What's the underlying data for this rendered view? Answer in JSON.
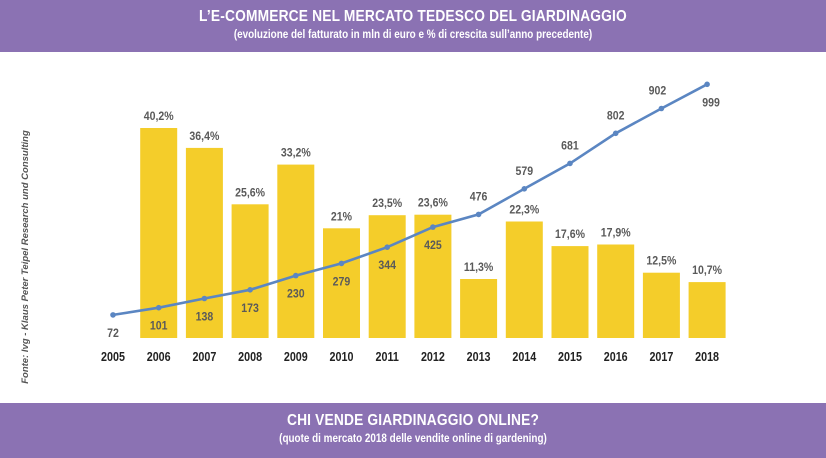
{
  "header": {
    "title": "L’E-COMMERCE NEL MERCATO TEDESCO DEL GIARDINAGGIO",
    "subtitle": "(evoluzione del fatturato in mln di euro e % di crescita sull’anno precedente)"
  },
  "footer": {
    "title": "CHI VENDE GIARDINAGGIO ONLINE?",
    "subtitle": "(quote di mercato 2018 delle vendite online di gardening)"
  },
  "source": "Fonte: Ivg - Klaus Peter Teipel Research und Consulting",
  "colors": {
    "band": "#8b72b3",
    "bar": "#f4cd2a",
    "line": "#5b86c2",
    "text": "#5a5a5a"
  },
  "chart_data": {
    "type": "bar",
    "categories": [
      "2005",
      "2006",
      "2007",
      "2008",
      "2009",
      "2010",
      "2011",
      "2012",
      "2013",
      "2014",
      "2015",
      "2016",
      "2017",
      "2018"
    ],
    "series": [
      {
        "type": "bar",
        "values": [
          null,
          40.2,
          36.4,
          25.6,
          33.2,
          21,
          23.5,
          23.6,
          11.3,
          22.3,
          17.6,
          17.9,
          12.5,
          10.7
        ],
        "labels": [
          "",
          "40,2%",
          "36,4%",
          "25,6%",
          "33,2%",
          "21%",
          "23,5%",
          "23,6%",
          "11,3%",
          "22,3%",
          "17,6%",
          "17,9%",
          "12,5%",
          "10,7%"
        ]
      },
      {
        "type": "line",
        "values": [
          72,
          101,
          138,
          173,
          230,
          279,
          344,
          425,
          476,
          579,
          681,
          802,
          902,
          999
        ],
        "labels": [
          "72",
          "101",
          "138",
          "173",
          "230",
          "279",
          "344",
          "425",
          "476",
          "579",
          "681",
          "802",
          "902",
          "999"
        ]
      }
    ],
    "bar_ylim": [
      0,
      50
    ],
    "line_ylim": [
      0,
      1000
    ],
    "grid": false,
    "legend": "none"
  }
}
